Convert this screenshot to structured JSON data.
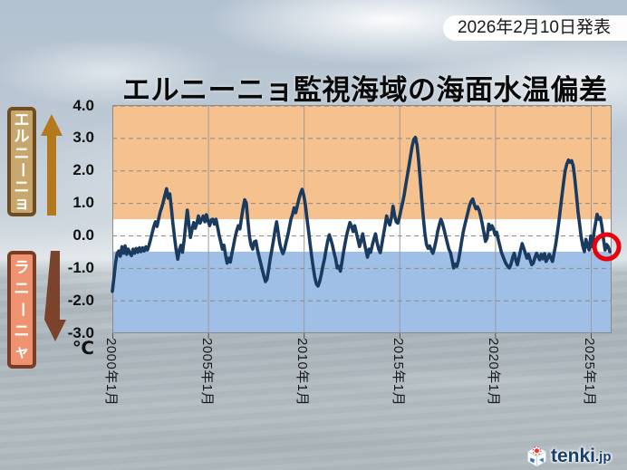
{
  "announcement": {
    "text": "2026年2月10日発表"
  },
  "title": "エルニーニョ監視海域の海面水温偏差",
  "side_labels": {
    "el_nino": "エルニーニョ",
    "la_nina": "ラニーニャ"
  },
  "unit_label": "℃",
  "logo": {
    "text": "tenki",
    "suffix": ".jp"
  },
  "colors": {
    "el_nino_band": "#F5C18F",
    "neutral_band": "#FFFFFF",
    "la_nina_band": "#A0BFE7",
    "line": "#1B3A5F",
    "marker": "#E8000D",
    "grid": "#8A8A8A",
    "vgrid": "#9B9B9B",
    "el_nino_box_bg": "#C8A76E",
    "el_nino_box_border": "#6E4E1E",
    "la_nina_box_bg": "#EF9270",
    "la_nina_box_border": "#7A3C24",
    "up_arrow": "#B5791D",
    "down_arrow": "#7B432B"
  },
  "chart_data": {
    "type": "line",
    "title": "エルニーニョ監視海域の海面水温偏差",
    "ylabel": "℃",
    "ylim": [
      -3.0,
      4.0
    ],
    "yticks": [
      4.0,
      3.0,
      2.0,
      1.0,
      0.0,
      -1.0,
      -2.0,
      -3.0
    ],
    "ytick_labels": [
      "4.0",
      "3.0",
      "2.0",
      "1.0",
      "0.0",
      "-1.0",
      "-2.0",
      "-3.0"
    ],
    "xticks": [
      "2000年1月",
      "2005年1月",
      "2010年1月",
      "2015年1月",
      "2020年1月",
      "2025年1月"
    ],
    "xtick_years": [
      2000,
      2005,
      2010,
      2015,
      2020,
      2025
    ],
    "bands": {
      "el_nino_above": 0.5,
      "la_nina_below": -0.5
    },
    "grid": true,
    "legend": "none",
    "series": [
      {
        "name": "海面水温偏差",
        "start": "2000年1月",
        "end": "2026年1月",
        "interval": "monthly",
        "values": [
          -1.72,
          -1.3,
          -0.85,
          -0.55,
          -0.48,
          -0.64,
          -0.35,
          -0.55,
          -0.32,
          -0.58,
          -0.42,
          -0.55,
          -0.62,
          -0.42,
          -0.55,
          -0.4,
          -0.52,
          -0.38,
          -0.5,
          -0.38,
          -0.48,
          -0.35,
          -0.45,
          -0.3,
          -0.12,
          0.08,
          0.28,
          0.42,
          0.28,
          0.5,
          0.72,
          0.87,
          1.05,
          1.25,
          1.44,
          1.15,
          1.28,
          0.85,
          0.35,
          -0.05,
          -0.45,
          -0.73,
          -0.45,
          -0.3,
          -0.52,
          -0.15,
          0.35,
          0.78,
          0.35,
          -0.06,
          0.18,
          0.4,
          0.22,
          0.38,
          0.6,
          0.38,
          0.5,
          0.6,
          0.42,
          0.64,
          0.45,
          0.3,
          0.48,
          0.5,
          0.35,
          0.5,
          0.25,
          0.0,
          -0.2,
          -0.42,
          -0.3,
          -0.62,
          -0.85,
          -0.7,
          -0.82,
          -0.55,
          -0.3,
          -0.05,
          0.15,
          0.3,
          0.2,
          0.55,
          0.85,
          1.1,
          1.0,
          0.45,
          -0.05,
          -0.3,
          -0.42,
          -0.2,
          -0.17,
          -0.45,
          -0.65,
          -0.85,
          -1.05,
          -1.25,
          -1.42,
          -1.35,
          -1.05,
          -0.72,
          -0.45,
          -0.15,
          0.15,
          0.42,
          0.1,
          -0.25,
          -0.45,
          -0.56,
          -0.42,
          -0.2,
          0.0,
          0.25,
          0.5,
          0.65,
          0.85,
          0.7,
          0.92,
          1.12,
          1.3,
          1.42,
          1.25,
          0.95,
          0.55,
          0.15,
          -0.25,
          -0.65,
          -1.0,
          -1.3,
          -1.5,
          -1.56,
          -1.42,
          -1.2,
          -0.95,
          -0.73,
          -0.45,
          -0.18,
          0.02,
          -0.12,
          -0.3,
          -0.52,
          -0.72,
          -1.0,
          -0.95,
          -1.1,
          -0.82,
          -0.5,
          -0.22,
          0.02,
          0.22,
          0.4,
          0.28,
          0.12,
          0.3,
          0.08,
          -0.12,
          -0.34,
          -0.15,
          0.05,
          -0.22,
          -0.45,
          -0.67,
          -0.42,
          -0.52,
          -0.3,
          -0.12,
          0.05,
          -0.22,
          -0.42,
          -0.53,
          -0.28,
          0.02,
          0.3,
          0.6,
          0.42,
          0.32,
          0.55,
          0.9,
          0.62,
          0.42,
          0.38,
          0.55,
          0.8,
          1.0,
          1.25,
          1.55,
          1.85,
          2.15,
          2.45,
          2.75,
          2.95,
          3.02,
          2.8,
          2.35,
          1.75,
          1.15,
          0.55,
          0.05,
          -0.28,
          -0.4,
          -0.32,
          -0.45,
          -0.55,
          -0.38,
          -0.15,
          0.12,
          0.32,
          0.5,
          0.38,
          0.18,
          -0.02,
          -0.22,
          -0.42,
          -0.52,
          -0.75,
          -1.0,
          -0.88,
          -0.95,
          -0.78,
          -0.5,
          -0.2,
          0.1,
          0.32,
          0.52,
          0.72,
          0.92,
          1.05,
          1.12,
          0.95,
          0.82,
          0.88,
          0.78,
          0.58,
          0.35,
          0.08,
          -0.18,
          -0.08,
          0.35,
          0.18,
          0.3,
          0.2,
          0.02,
          0.1,
          -0.12,
          -0.32,
          -0.52,
          -0.65,
          -0.78,
          -0.88,
          -0.95,
          -1.0,
          -0.88,
          -0.68,
          -0.55,
          -0.75,
          -0.9,
          -0.68,
          -0.45,
          -0.25,
          -0.4,
          -0.55,
          -0.7,
          -0.58,
          -0.75,
          -0.9,
          -0.85,
          -0.68,
          -0.55,
          -0.65,
          -0.75,
          -0.58,
          -0.72,
          -0.56,
          -0.8,
          -0.7,
          -0.58,
          -0.7,
          -0.8,
          -0.55,
          -0.28,
          0.05,
          0.42,
          0.85,
          1.25,
          1.65,
          2.0,
          2.2,
          2.32,
          2.25,
          2.3,
          2.15,
          1.75,
          1.25,
          0.75,
          0.35,
          -0.05,
          -0.32,
          -0.5,
          -0.12,
          -0.32,
          -0.45,
          -0.02,
          -0.35,
          0.08,
          0.38,
          0.65,
          0.5,
          0.55,
          0.28,
          -0.12,
          -0.45,
          -0.28,
          -0.35,
          -0.5
        ]
      }
    ],
    "marker": {
      "shape": "red-circle",
      "center_value": -0.35,
      "radius": 13.5
    }
  }
}
